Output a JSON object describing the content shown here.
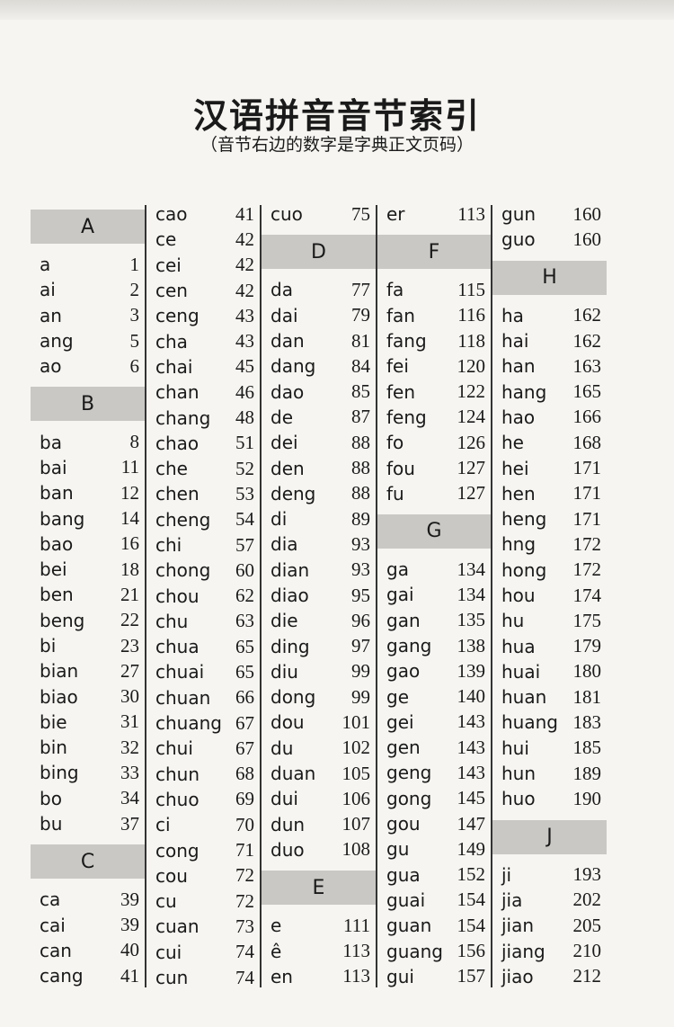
{
  "title": "汉语拼音音节索引",
  "subtitle": "（音节右边的数字是字典正文页码）",
  "columns": [
    [
      {
        "h": "A"
      },
      {
        "s": "a",
        "p": "1"
      },
      {
        "s": "ai",
        "p": "2"
      },
      {
        "s": "an",
        "p": "3"
      },
      {
        "s": "ang",
        "p": "5"
      },
      {
        "s": "ao",
        "p": "6"
      },
      {
        "h": "B"
      },
      {
        "s": "ba",
        "p": "8"
      },
      {
        "s": "bai",
        "p": "11"
      },
      {
        "s": "ban",
        "p": "12"
      },
      {
        "s": "bang",
        "p": "14"
      },
      {
        "s": "bao",
        "p": "16"
      },
      {
        "s": "bei",
        "p": "18"
      },
      {
        "s": "ben",
        "p": "21"
      },
      {
        "s": "beng",
        "p": "22"
      },
      {
        "s": "bi",
        "p": "23"
      },
      {
        "s": "bian",
        "p": "27"
      },
      {
        "s": "biao",
        "p": "30"
      },
      {
        "s": "bie",
        "p": "31"
      },
      {
        "s": "bin",
        "p": "32"
      },
      {
        "s": "bing",
        "p": "33"
      },
      {
        "s": "bo",
        "p": "34"
      },
      {
        "s": "bu",
        "p": "37"
      },
      {
        "h": "C"
      },
      {
        "s": "ca",
        "p": "39"
      },
      {
        "s": "cai",
        "p": "39"
      },
      {
        "s": "can",
        "p": "40"
      },
      {
        "s": "cang",
        "p": "41"
      }
    ],
    [
      {
        "s": "cao",
        "p": "41"
      },
      {
        "s": "ce",
        "p": "42"
      },
      {
        "s": "cei",
        "p": "42"
      },
      {
        "s": "cen",
        "p": "42"
      },
      {
        "s": "ceng",
        "p": "43"
      },
      {
        "s": "cha",
        "p": "43"
      },
      {
        "s": "chai",
        "p": "45"
      },
      {
        "s": "chan",
        "p": "46"
      },
      {
        "s": "chang",
        "p": "48"
      },
      {
        "s": "chao",
        "p": "51"
      },
      {
        "s": "che",
        "p": "52"
      },
      {
        "s": "chen",
        "p": "53"
      },
      {
        "s": "cheng",
        "p": "54"
      },
      {
        "s": "chi",
        "p": "57"
      },
      {
        "s": "chong",
        "p": "60"
      },
      {
        "s": "chou",
        "p": "62"
      },
      {
        "s": "chu",
        "p": "63"
      },
      {
        "s": "chua",
        "p": "65"
      },
      {
        "s": "chuai",
        "p": "65"
      },
      {
        "s": "chuan",
        "p": "66"
      },
      {
        "s": "chuang",
        "p": "67"
      },
      {
        "s": "chui",
        "p": "67"
      },
      {
        "s": "chun",
        "p": "68"
      },
      {
        "s": "chuo",
        "p": "69"
      },
      {
        "s": "ci",
        "p": "70"
      },
      {
        "s": "cong",
        "p": "71"
      },
      {
        "s": "cou",
        "p": "72"
      },
      {
        "s": "cu",
        "p": "72"
      },
      {
        "s": "cuan",
        "p": "73"
      },
      {
        "s": "cui",
        "p": "74"
      },
      {
        "s": "cun",
        "p": "74"
      }
    ],
    [
      {
        "s": "cuo",
        "p": "75"
      },
      {
        "h": "D"
      },
      {
        "s": "da",
        "p": "77"
      },
      {
        "s": "dai",
        "p": "79"
      },
      {
        "s": "dan",
        "p": "81"
      },
      {
        "s": "dang",
        "p": "84"
      },
      {
        "s": "dao",
        "p": "85"
      },
      {
        "s": "de",
        "p": "87"
      },
      {
        "s": "dei",
        "p": "88"
      },
      {
        "s": "den",
        "p": "88"
      },
      {
        "s": "deng",
        "p": "88"
      },
      {
        "s": "di",
        "p": "89"
      },
      {
        "s": "dia",
        "p": "93"
      },
      {
        "s": "dian",
        "p": "93"
      },
      {
        "s": "diao",
        "p": "95"
      },
      {
        "s": "die",
        "p": "96"
      },
      {
        "s": "ding",
        "p": "97"
      },
      {
        "s": "diu",
        "p": "99"
      },
      {
        "s": "dong",
        "p": "99"
      },
      {
        "s": "dou",
        "p": "101"
      },
      {
        "s": "du",
        "p": "102"
      },
      {
        "s": "duan",
        "p": "105"
      },
      {
        "s": "dui",
        "p": "106"
      },
      {
        "s": "dun",
        "p": "107"
      },
      {
        "s": "duo",
        "p": "108"
      },
      {
        "h": "E"
      },
      {
        "s": "e",
        "p": "111"
      },
      {
        "s": "ê",
        "p": "113"
      },
      {
        "s": "en",
        "p": "113"
      }
    ],
    [
      {
        "s": "er",
        "p": "113"
      },
      {
        "h": "F"
      },
      {
        "s": "fa",
        "p": "115"
      },
      {
        "s": "fan",
        "p": "116"
      },
      {
        "s": "fang",
        "p": "118"
      },
      {
        "s": "fei",
        "p": "120"
      },
      {
        "s": "fen",
        "p": "122"
      },
      {
        "s": "feng",
        "p": "124"
      },
      {
        "s": "fo",
        "p": "126"
      },
      {
        "s": "fou",
        "p": "127"
      },
      {
        "s": "fu",
        "p": "127"
      },
      {
        "h": "G"
      },
      {
        "s": "ga",
        "p": "134"
      },
      {
        "s": "gai",
        "p": "134"
      },
      {
        "s": "gan",
        "p": "135"
      },
      {
        "s": "gang",
        "p": "138"
      },
      {
        "s": "gao",
        "p": "139"
      },
      {
        "s": "ge",
        "p": "140"
      },
      {
        "s": "gei",
        "p": "143"
      },
      {
        "s": "gen",
        "p": "143"
      },
      {
        "s": "geng",
        "p": "143"
      },
      {
        "s": "gong",
        "p": "145"
      },
      {
        "s": "gou",
        "p": "147"
      },
      {
        "s": "gu",
        "p": "149"
      },
      {
        "s": "gua",
        "p": "152"
      },
      {
        "s": "guai",
        "p": "154"
      },
      {
        "s": "guan",
        "p": "154"
      },
      {
        "s": "guang",
        "p": "156"
      },
      {
        "s": "gui",
        "p": "157"
      }
    ],
    [
      {
        "s": "gun",
        "p": "160"
      },
      {
        "s": "guo",
        "p": "160"
      },
      {
        "h": "H"
      },
      {
        "s": "ha",
        "p": "162"
      },
      {
        "s": "hai",
        "p": "162"
      },
      {
        "s": "han",
        "p": "163"
      },
      {
        "s": "hang",
        "p": "165"
      },
      {
        "s": "hao",
        "p": "166"
      },
      {
        "s": "he",
        "p": "168"
      },
      {
        "s": "hei",
        "p": "171"
      },
      {
        "s": "hen",
        "p": "171"
      },
      {
        "s": "heng",
        "p": "171"
      },
      {
        "s": "hng",
        "p": "172"
      },
      {
        "s": "hong",
        "p": "172"
      },
      {
        "s": "hou",
        "p": "174"
      },
      {
        "s": "hu",
        "p": "175"
      },
      {
        "s": "hua",
        "p": "179"
      },
      {
        "s": "huai",
        "p": "180"
      },
      {
        "s": "huan",
        "p": "181"
      },
      {
        "s": "huang",
        "p": "183"
      },
      {
        "s": "hui",
        "p": "185"
      },
      {
        "s": "hun",
        "p": "189"
      },
      {
        "s": "huo",
        "p": "190"
      },
      {
        "h": "J"
      },
      {
        "s": "ji",
        "p": "193"
      },
      {
        "s": "jia",
        "p": "202"
      },
      {
        "s": "jian",
        "p": "205"
      },
      {
        "s": "jiang",
        "p": "210"
      },
      {
        "s": "jiao",
        "p": "212"
      }
    ]
  ]
}
